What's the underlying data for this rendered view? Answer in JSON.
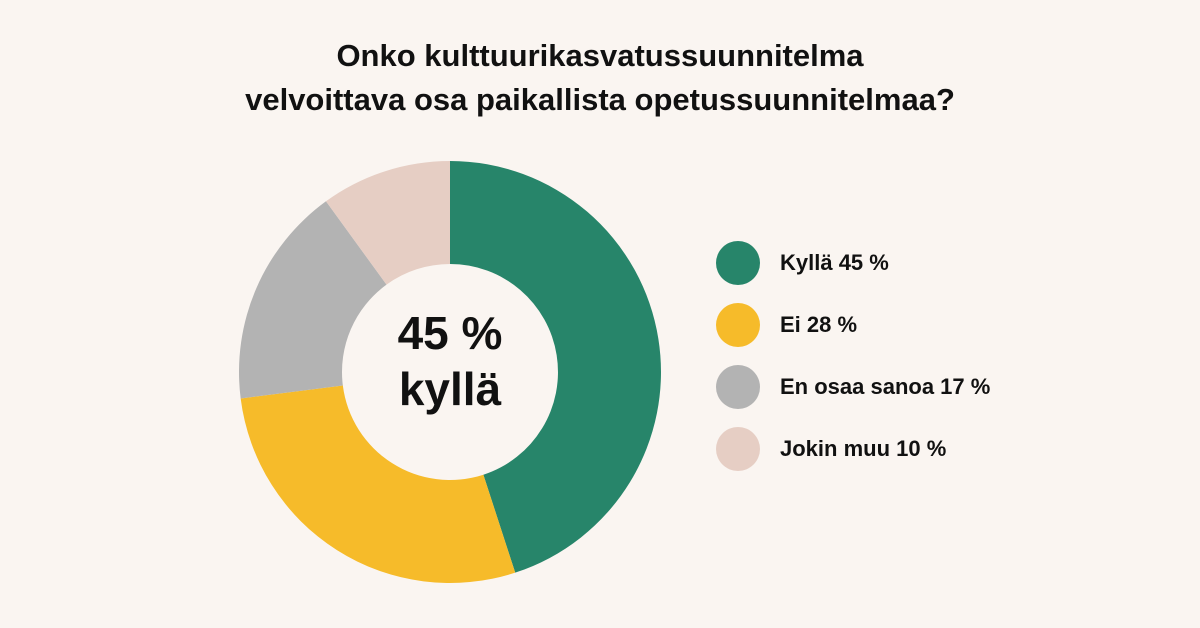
{
  "chart_data": {
    "type": "pie",
    "variant": "donut",
    "title_lines": [
      "Onko kulttuurikasvatussuunnitelma",
      "velvoittava osa paikallista opetussuunnitelmaa?"
    ],
    "center_lines": [
      "45 %",
      "kyllä"
    ],
    "legend_position": "right",
    "slices": [
      {
        "key": "kylla",
        "label": "Kyllä 45 %",
        "value": 45,
        "color": "#27856a"
      },
      {
        "key": "ei",
        "label": "Ei 28 %",
        "value": 28,
        "color": "#f6bb2a"
      },
      {
        "key": "en-osaa-sanoa",
        "label": "En osaa sanoa 17 %",
        "value": 17,
        "color": "#b3b3b3"
      },
      {
        "key": "jokin-muu",
        "label": "Jokin muu 10 %",
        "value": 10,
        "color": "#e6cec4"
      }
    ]
  }
}
